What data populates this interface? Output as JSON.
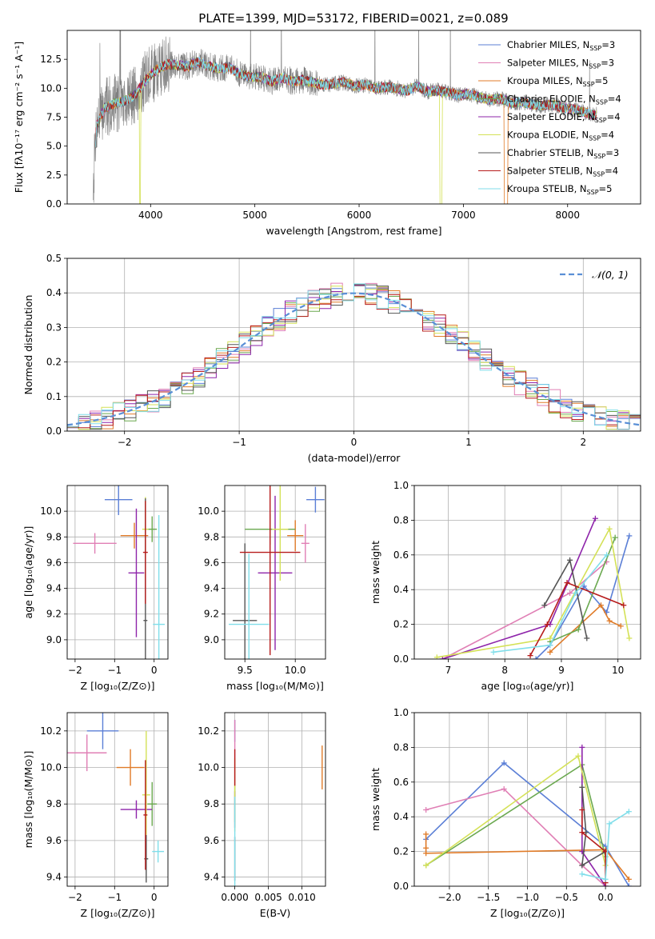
{
  "figure": {
    "title": "PLATE=1399, MJD=53172, FIBERID=0021, z=0.089"
  },
  "chart_data": [
    {
      "id": "spectrum",
      "type": "line",
      "xlabel": "wavelength [Angstrom, rest frame]",
      "ylabel": "Flux [fλ10⁻¹⁷ erg cm⁻² s⁻¹ A⁻¹]",
      "xlim": [
        3200,
        8700
      ],
      "ylim": [
        0,
        15
      ],
      "xticks": [
        4000,
        5000,
        6000,
        7000,
        8000
      ],
      "yticks": [
        0.0,
        2.5,
        5.0,
        7.5,
        10.0,
        12.5
      ],
      "grid": false,
      "legend_position": "top-right",
      "data_x": [
        3480,
        3560,
        3660,
        3760,
        3860,
        3960,
        4060,
        4160,
        4260,
        4360,
        4460,
        4560,
        4660,
        4760,
        4860,
        4960,
        5060,
        5160,
        5260,
        5360,
        5460,
        5560,
        5660,
        5760,
        5860,
        5960,
        6060,
        6160,
        6260,
        6360,
        6460,
        6560,
        6660,
        6760,
        6860,
        6960,
        7060,
        7160,
        7260,
        7360,
        7460,
        7560,
        7660,
        7760,
        7860,
        7960,
        8060,
        8160,
        8260
      ],
      "data_y": [
        6.8,
        8.3,
        8.7,
        8.9,
        9.5,
        10.8,
        11.6,
        12.1,
        12.0,
        11.9,
        12.3,
        11.9,
        11.7,
        11.8,
        11.2,
        11.0,
        11.0,
        10.6,
        10.9,
        10.6,
        10.7,
        10.5,
        10.3,
        10.4,
        10.5,
        10.2,
        10.3,
        10.0,
        10.1,
        10.0,
        9.8,
        10.2,
        9.7,
        9.8,
        9.6,
        9.4,
        9.5,
        9.2,
        9.0,
        9.1,
        8.7,
        8.8,
        8.6,
        8.5,
        8.6,
        8.3,
        8.2,
        7.9,
        7.7
      ],
      "series": [
        {
          "name": "Chabrier MILES, N",
          "sub": "SSP",
          "count": "=3",
          "color": "#5b7fd6",
          "width": 0.8
        },
        {
          "name": "Salpeter MILES, N",
          "sub": "SSP",
          "count": "=3",
          "color": "#e07fb5",
          "width": 0.8
        },
        {
          "name": "Kroupa MILES, N",
          "sub": "SSP",
          "count": "=5",
          "color": "#e07b28",
          "width": 0.8
        },
        {
          "name": "Chabrier ELODIE, N",
          "sub": "SSP",
          "count": "=4",
          "color": "#6aa84f",
          "width": 0.8
        },
        {
          "name": "Salpeter ELODIE, N",
          "sub": "SSP",
          "count": "=4",
          "color": "#8e24aa",
          "width": 0.8
        },
        {
          "name": "Kroupa ELODIE, N",
          "sub": "SSP",
          "count": "=4",
          "color": "#d4e157",
          "width": 0.8
        },
        {
          "name": "Chabrier STELIB, N",
          "sub": "SSP",
          "count": "=3",
          "color": "#555555",
          "width": 0.8
        },
        {
          "name": "Salpeter STELIB, N",
          "sub": "SSP",
          "count": "=4",
          "color": "#b71c1c",
          "width": 0.8
        },
        {
          "name": "Kroupa STELIB, N",
          "sub": "SSP",
          "count": "=5",
          "color": "#80deea",
          "width": 0.8
        }
      ]
    },
    {
      "id": "residuals",
      "type": "histogram",
      "xlabel": "(data-model)/error",
      "ylabel": "Normed distribution",
      "xlim": [
        -2.5,
        2.5
      ],
      "ylim": [
        0,
        0.5
      ],
      "xticks": [
        -2,
        -1,
        0,
        1,
        2
      ],
      "yticks": [
        0.0,
        0.1,
        0.2,
        0.3,
        0.4,
        0.5
      ],
      "grid": true,
      "legend_position": "top-right",
      "legend_label": "𝒩(0, 1)",
      "bin_width": 0.1,
      "bins_start": -2.5,
      "density_reference": {
        "mean": 0,
        "sigma": 1,
        "color": "#5a8fd6"
      }
    },
    {
      "id": "age-vs-z",
      "type": "scatter",
      "xlabel": "Z [log₁₀(Z/Z⊙)]",
      "ylabel": "age  [log₁₀(age/yr)]",
      "xlim": [
        -2.2,
        0.35
      ],
      "ylim": [
        8.85,
        10.2
      ],
      "xticks": [
        -2,
        -1,
        0
      ],
      "yticks": [
        9.0,
        9.2,
        9.4,
        9.6,
        9.8,
        10.0
      ],
      "grid": true,
      "points": [
        {
          "x": -0.9,
          "y": 10.09,
          "xerr": 0.35,
          "yerr": 0.12,
          "color": "#5b7fd6"
        },
        {
          "x": -1.5,
          "y": 9.75,
          "xerr": 0.55,
          "yerr": 0.08,
          "color": "#e07fb5"
        },
        {
          "x": -0.5,
          "y": 9.81,
          "xerr": 0.35,
          "yerr": 0.1,
          "color": "#e07b28"
        },
        {
          "x": -0.05,
          "y": 9.86,
          "xerr": 0.12,
          "yerr": 0.1,
          "color": "#6aa84f"
        },
        {
          "x": -0.45,
          "y": 9.52,
          "xerr": 0.2,
          "yerr": 0.5,
          "color": "#8e24aa"
        },
        {
          "x": -0.22,
          "y": 9.86,
          "xerr": 0.08,
          "yerr": 0.25,
          "color": "#d4e157"
        },
        {
          "x": -0.22,
          "y": 9.15,
          "xerr": 0.05,
          "yerr": 0.95,
          "color": "#555555"
        },
        {
          "x": -0.22,
          "y": 9.68,
          "xerr": 0.06,
          "yerr": 0.4,
          "color": "#b71c1c"
        },
        {
          "x": 0.12,
          "y": 9.12,
          "xerr": 0.15,
          "yerr": 0.85,
          "color": "#80deea"
        }
      ]
    },
    {
      "id": "age-vs-mass",
      "type": "scatter",
      "xlabel": "mass [log₁₀(M/M⊙)]",
      "ylabel": "",
      "xlim": [
        9.3,
        10.3
      ],
      "ylim": [
        8.85,
        10.2
      ],
      "xticks": [
        9.5,
        10.0
      ],
      "yticks": [
        9.0,
        9.2,
        9.4,
        9.6,
        9.8,
        10.0
      ],
      "grid": true,
      "points": [
        {
          "x": 10.2,
          "y": 10.09,
          "xerr": 0.09,
          "yerr": 0.1,
          "color": "#5b7fd6"
        },
        {
          "x": 10.1,
          "y": 9.75,
          "xerr": 0.04,
          "yerr": 0.15,
          "color": "#e07fb5"
        },
        {
          "x": 10.0,
          "y": 9.81,
          "xerr": 0.08,
          "yerr": 0.12,
          "color": "#e07b28"
        },
        {
          "x": 9.75,
          "y": 9.86,
          "xerr": 0.25,
          "yerr": 0.12,
          "color": "#6aa84f"
        },
        {
          "x": 9.8,
          "y": 9.52,
          "xerr": 0.17,
          "yerr": 0.6,
          "color": "#8e24aa"
        },
        {
          "x": 9.85,
          "y": 9.86,
          "xerr": 0.08,
          "yerr": 0.4,
          "color": "#d4e157"
        },
        {
          "x": 9.5,
          "y": 9.15,
          "xerr": 0.12,
          "yerr": 0.6,
          "color": "#555555"
        },
        {
          "x": 9.75,
          "y": 9.68,
          "xerr": 0.3,
          "yerr": 0.8,
          "color": "#b71c1c"
        },
        {
          "x": 9.54,
          "y": 9.12,
          "xerr": 0.2,
          "yerr": 0.55,
          "color": "#80deea"
        }
      ]
    },
    {
      "id": "mass-weight-vs-age",
      "type": "line",
      "xlabel": "age  [log₁₀(age/yr)]",
      "ylabel": "mass weight",
      "xlim": [
        6.4,
        10.4
      ],
      "ylim": [
        0,
        1.0
      ],
      "xticks": [
        7,
        8,
        9,
        10
      ],
      "yticks": [
        0.0,
        0.2,
        0.4,
        0.6,
        0.8,
        1.0
      ],
      "grid": true,
      "series": [
        {
          "color": "#5b7fd6",
          "x": [
            8.55,
            8.8,
            9.4,
            9.8,
            10.2
          ],
          "y": [
            0.0,
            0.08,
            0.42,
            0.27,
            0.71
          ]
        },
        {
          "color": "#e07fb5",
          "x": [
            6.9,
            9.15,
            9.8
          ],
          "y": [
            0.0,
            0.38,
            0.56
          ]
        },
        {
          "color": "#e07b28",
          "x": [
            8.8,
            9.7,
            9.85,
            10.05
          ],
          "y": [
            0.04,
            0.31,
            0.22,
            0.19
          ]
        },
        {
          "color": "#6aa84f",
          "x": [
            8.8,
            9.3,
            9.95
          ],
          "y": [
            0.1,
            0.17,
            0.7
          ]
        },
        {
          "color": "#8e24aa",
          "x": [
            6.9,
            8.8,
            9.6
          ],
          "y": [
            0.0,
            0.2,
            0.81
          ]
        },
        {
          "color": "#d4e157",
          "x": [
            6.8,
            8.8,
            9.85,
            10.2
          ],
          "y": [
            0.01,
            0.12,
            0.75,
            0.12
          ]
        },
        {
          "color": "#555555",
          "x": [
            8.7,
            9.15,
            9.45
          ],
          "y": [
            0.31,
            0.57,
            0.12
          ]
        },
        {
          "color": "#b71c1c",
          "x": [
            8.45,
            8.75,
            9.1,
            10.1
          ],
          "y": [
            0.02,
            0.2,
            0.44,
            0.31
          ]
        },
        {
          "color": "#80deea",
          "x": [
            7.8,
            8.8,
            9.25,
            9.8
          ],
          "y": [
            0.04,
            0.08,
            0.38,
            0.6
          ]
        }
      ]
    },
    {
      "id": "mass-vs-z",
      "type": "scatter",
      "xlabel": "Z [log₁₀(Z/Z⊙)]",
      "ylabel": "mass [log₁₀(M/M⊙)]",
      "xlim": [
        -2.2,
        0.35
      ],
      "ylim": [
        9.35,
        10.3
      ],
      "xticks": [
        -2,
        -1,
        0
      ],
      "yticks": [
        9.4,
        9.6,
        9.8,
        10.0,
        10.2
      ],
      "grid": true,
      "points": [
        {
          "x": -1.3,
          "y": 10.2,
          "xerr": 0.4,
          "yerr": 0.1,
          "color": "#5b7fd6"
        },
        {
          "x": -1.7,
          "y": 10.08,
          "xerr": 0.5,
          "yerr": 0.1,
          "color": "#e07fb5"
        },
        {
          "x": -0.6,
          "y": 10.0,
          "xerr": 0.35,
          "yerr": 0.1,
          "color": "#e07b28"
        },
        {
          "x": -0.05,
          "y": 9.8,
          "xerr": 0.12,
          "yerr": 0.12,
          "color": "#6aa84f"
        },
        {
          "x": -0.45,
          "y": 9.77,
          "xerr": 0.4,
          "yerr": 0.05,
          "color": "#8e24aa"
        },
        {
          "x": -0.2,
          "y": 9.85,
          "xerr": 0.1,
          "yerr": 0.35,
          "color": "#d4e157"
        },
        {
          "x": -0.2,
          "y": 9.5,
          "xerr": 0.05,
          "yerr": 0.13,
          "color": "#555555"
        },
        {
          "x": -0.22,
          "y": 9.74,
          "xerr": 0.05,
          "yerr": 0.3,
          "color": "#b71c1c"
        },
        {
          "x": 0.1,
          "y": 9.54,
          "xerr": 0.15,
          "yerr": 0.06,
          "color": "#80deea"
        }
      ]
    },
    {
      "id": "mass-vs-ebv",
      "type": "scatter",
      "xlabel": "E(B-V)",
      "ylabel": "",
      "xlim": [
        -0.0015,
        0.0135
      ],
      "ylim": [
        9.35,
        10.3
      ],
      "xticks": [
        0.0,
        0.005,
        0.01
      ],
      "xticklabels": [
        "0.000",
        "0.005",
        "0.010"
      ],
      "yticks": [
        9.4,
        9.6,
        9.8,
        10.0,
        10.2
      ],
      "grid": true,
      "points": [
        {
          "x": 0.0,
          "y": 10.2,
          "xerr": 0.0,
          "yerr": 0.06,
          "color": "#5b7fd6"
        },
        {
          "x": 0.0,
          "y": 10.08,
          "xerr": 0.0,
          "yerr": 0.18,
          "color": "#e07fb5"
        },
        {
          "x": 0.013,
          "y": 10.0,
          "xerr": 0.0,
          "yerr": 0.12,
          "color": "#e07b28"
        },
        {
          "x": 0.0,
          "y": 9.8,
          "xerr": 0.0,
          "yerr": 0.1,
          "color": "#6aa84f"
        },
        {
          "x": 0.0,
          "y": 9.77,
          "xerr": 0.0,
          "yerr": 0.1,
          "color": "#8e24aa"
        },
        {
          "x": 0.0,
          "y": 9.85,
          "xerr": 0.0,
          "yerr": 0.2,
          "color": "#d4e157"
        },
        {
          "x": 0.0,
          "y": 9.5,
          "xerr": 0.0,
          "yerr": 0.12,
          "color": "#555555"
        },
        {
          "x": 0.0,
          "y": 10.0,
          "xerr": 0.0,
          "yerr": 0.1,
          "color": "#b71c1c"
        },
        {
          "x": 0.0,
          "y": 9.54,
          "xerr": 0.0,
          "yerr": 0.3,
          "color": "#80deea"
        }
      ]
    },
    {
      "id": "mass-weight-vs-z",
      "type": "line",
      "xlabel": "Z [log₁₀(Z/Z⊙)]",
      "ylabel": "mass weight",
      "xlim": [
        -2.45,
        0.45
      ],
      "ylim": [
        0,
        1.0
      ],
      "xticks": [
        -2.0,
        -1.5,
        -1.0,
        -0.5,
        0.0
      ],
      "yticks": [
        0.0,
        0.2,
        0.4,
        0.6,
        0.8,
        1.0
      ],
      "grid": true,
      "series": [
        {
          "color": "#5b7fd6",
          "x": [
            -2.3,
            -1.3,
            0.0,
            0.3
          ],
          "y": [
            0.27,
            0.71,
            0.23,
            0.0
          ]
        },
        {
          "color": "#e07fb5",
          "x": [
            -2.3,
            -1.3,
            -0.3,
            0.0
          ],
          "y": [
            0.44,
            0.56,
            0.12,
            0.0
          ]
        },
        {
          "color": "#e07b28",
          "x": [
            -2.3,
            -2.3,
            -2.3,
            0.0,
            0.3
          ],
          "y": [
            0.3,
            0.22,
            0.19,
            0.21,
            0.04
          ]
        },
        {
          "color": "#6aa84f",
          "x": [
            -2.3,
            -0.3,
            0.0
          ],
          "y": [
            0.12,
            0.7,
            0.17
          ]
        },
        {
          "color": "#8e24aa",
          "x": [
            -0.3,
            -0.3,
            0.0
          ],
          "y": [
            0.8,
            0.2,
            0.0
          ]
        },
        {
          "color": "#d4e157",
          "x": [
            -2.3,
            -0.35,
            0.0
          ],
          "y": [
            0.12,
            0.75,
            0.12
          ]
        },
        {
          "color": "#555555",
          "x": [
            -0.3,
            -0.25,
            -0.3,
            0.0
          ],
          "y": [
            0.57,
            0.31,
            0.12,
            0.2
          ]
        },
        {
          "color": "#b71c1c",
          "x": [
            -0.3,
            -0.3,
            0.0,
            0.0
          ],
          "y": [
            0.44,
            0.31,
            0.2,
            0.02
          ]
        },
        {
          "color": "#80deea",
          "x": [
            -0.3,
            0.0,
            0.05,
            0.3
          ],
          "y": [
            0.07,
            0.04,
            0.36,
            0.43
          ]
        }
      ]
    }
  ]
}
